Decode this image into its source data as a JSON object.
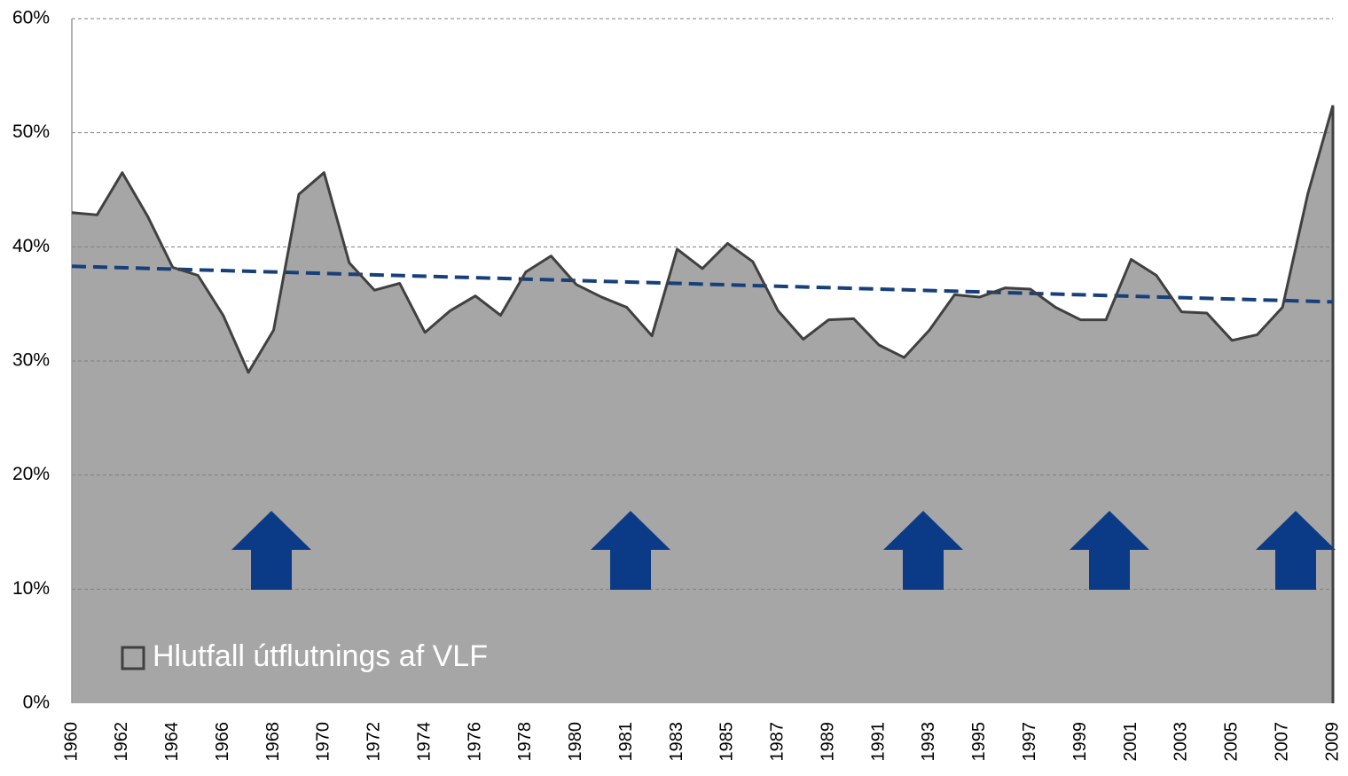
{
  "chart_data": {
    "type": "area",
    "categories": [
      "1960",
      null,
      "1962",
      null,
      "1964",
      null,
      "1966",
      null,
      "1968",
      null,
      "1970",
      null,
      "1972",
      null,
      "1974",
      null,
      "1976",
      null,
      "1978",
      null,
      "1980",
      null,
      "1981",
      null,
      "1983",
      null,
      "1985",
      null,
      "1987",
      null,
      "1989",
      null,
      "1991",
      null,
      "1993",
      null,
      "1995",
      null,
      "1997",
      null,
      "1999",
      null,
      "2001",
      null,
      "2003",
      null,
      "2005",
      null,
      "2007",
      null,
      "2009"
    ],
    "series": [
      {
        "name": "Hlutfall útflutnings af VLF",
        "color": "#a6a6a6",
        "values": [
          43.0,
          42.8,
          46.5,
          42.7,
          38.2,
          37.5,
          34.0,
          29.0,
          32.7,
          44.6,
          46.5,
          38.6,
          36.2,
          36.8,
          32.5,
          34.4,
          35.7,
          34.0,
          37.8,
          39.2,
          36.7,
          35.6,
          34.7,
          32.2,
          39.8,
          38.1,
          40.3,
          38.7,
          34.4,
          31.9,
          33.6,
          33.7,
          31.4,
          30.3,
          32.7,
          35.8,
          35.6,
          36.4,
          36.3,
          34.7,
          33.6,
          33.6,
          38.9,
          37.5,
          34.3,
          34.2,
          31.8,
          32.3,
          34.7,
          44.6,
          52.4
        ]
      }
    ],
    "line_color": "#404040",
    "trendline": true,
    "trendline_color": "#17407a",
    "ylim": [
      0,
      60
    ],
    "yticks": [
      {
        "value": 0,
        "label": "0%"
      },
      {
        "value": 10,
        "label": "10%"
      },
      {
        "value": 20,
        "label": "20%"
      },
      {
        "value": 30,
        "label": "30%"
      },
      {
        "value": 40,
        "label": "40%"
      },
      {
        "value": 50,
        "label": "50%"
      },
      {
        "value": 60,
        "label": "60%"
      }
    ],
    "grid": true,
    "legend": "lower left"
  }
}
